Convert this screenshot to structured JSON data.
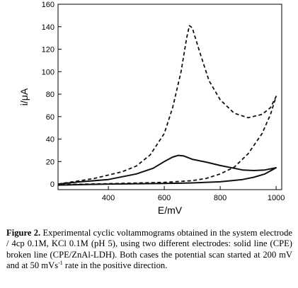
{
  "chart_data": {
    "type": "line",
    "xlabel": "E/mV",
    "ylabel": "i/μA",
    "xlim": [
      220,
      1020
    ],
    "ylim": [
      -5,
      160
    ],
    "xticks": [
      400,
      600,
      800,
      1000
    ],
    "yticks": [
      0,
      20,
      40,
      60,
      80,
      100,
      120,
      140,
      160
    ],
    "grid": false,
    "series": [
      {
        "style": "solid",
        "description_ref": "CPE",
        "forward": [
          [
            200,
            0
          ],
          [
            300,
            2
          ],
          [
            400,
            4
          ],
          [
            500,
            9
          ],
          [
            560,
            14
          ],
          [
            600,
            20
          ],
          [
            630,
            24
          ],
          [
            650,
            25.5
          ],
          [
            670,
            25
          ],
          [
            700,
            22
          ],
          [
            750,
            19.5
          ],
          [
            800,
            16.5
          ],
          [
            850,
            14
          ],
          [
            880,
            12.5
          ],
          [
            920,
            12
          ],
          [
            960,
            12.5
          ],
          [
            1000,
            14.5
          ]
        ],
        "reverse": [
          [
            1000,
            14.5
          ],
          [
            960,
            9
          ],
          [
            920,
            6
          ],
          [
            880,
            4
          ],
          [
            800,
            2
          ],
          [
            700,
            1
          ],
          [
            600,
            0.5
          ],
          [
            400,
            0
          ],
          [
            200,
            -1
          ]
        ]
      },
      {
        "style": "dashed",
        "description_ref": "CPE/ZnAl-LDH",
        "forward": [
          [
            200,
            0
          ],
          [
            300,
            3
          ],
          [
            350,
            5
          ],
          [
            400,
            8
          ],
          [
            450,
            11
          ],
          [
            500,
            16
          ],
          [
            550,
            26
          ],
          [
            600,
            45
          ],
          [
            630,
            68
          ],
          [
            660,
            100
          ],
          [
            680,
            130
          ],
          [
            690,
            141
          ],
          [
            700,
            139
          ],
          [
            730,
            115
          ],
          [
            760,
            92
          ],
          [
            800,
            75
          ],
          [
            850,
            63
          ],
          [
            900,
            59
          ],
          [
            950,
            62
          ],
          [
            980,
            68
          ],
          [
            1000,
            78
          ]
        ],
        "reverse": [
          [
            1000,
            78
          ],
          [
            980,
            62
          ],
          [
            950,
            45
          ],
          [
            900,
            27
          ],
          [
            850,
            15
          ],
          [
            800,
            9
          ],
          [
            750,
            5
          ],
          [
            700,
            3
          ],
          [
            600,
            1.5
          ],
          [
            400,
            0.3
          ],
          [
            200,
            -0.5
          ]
        ]
      }
    ]
  },
  "caption": {
    "label": "Figure 2.",
    "text_before_sup": " Experimental cyclic voltammograms obtained in the system electrode / 4cp 0.1M, KCl 0.1M (pH 5), using two different electrodes: solid line (CPE) broken line (CPE/ZnAl-LDH). Both cases the potential scan started at 200 mV and at 50 mVs",
    "superscript": "-1",
    "text_after_sup": " rate in the positive direction."
  }
}
